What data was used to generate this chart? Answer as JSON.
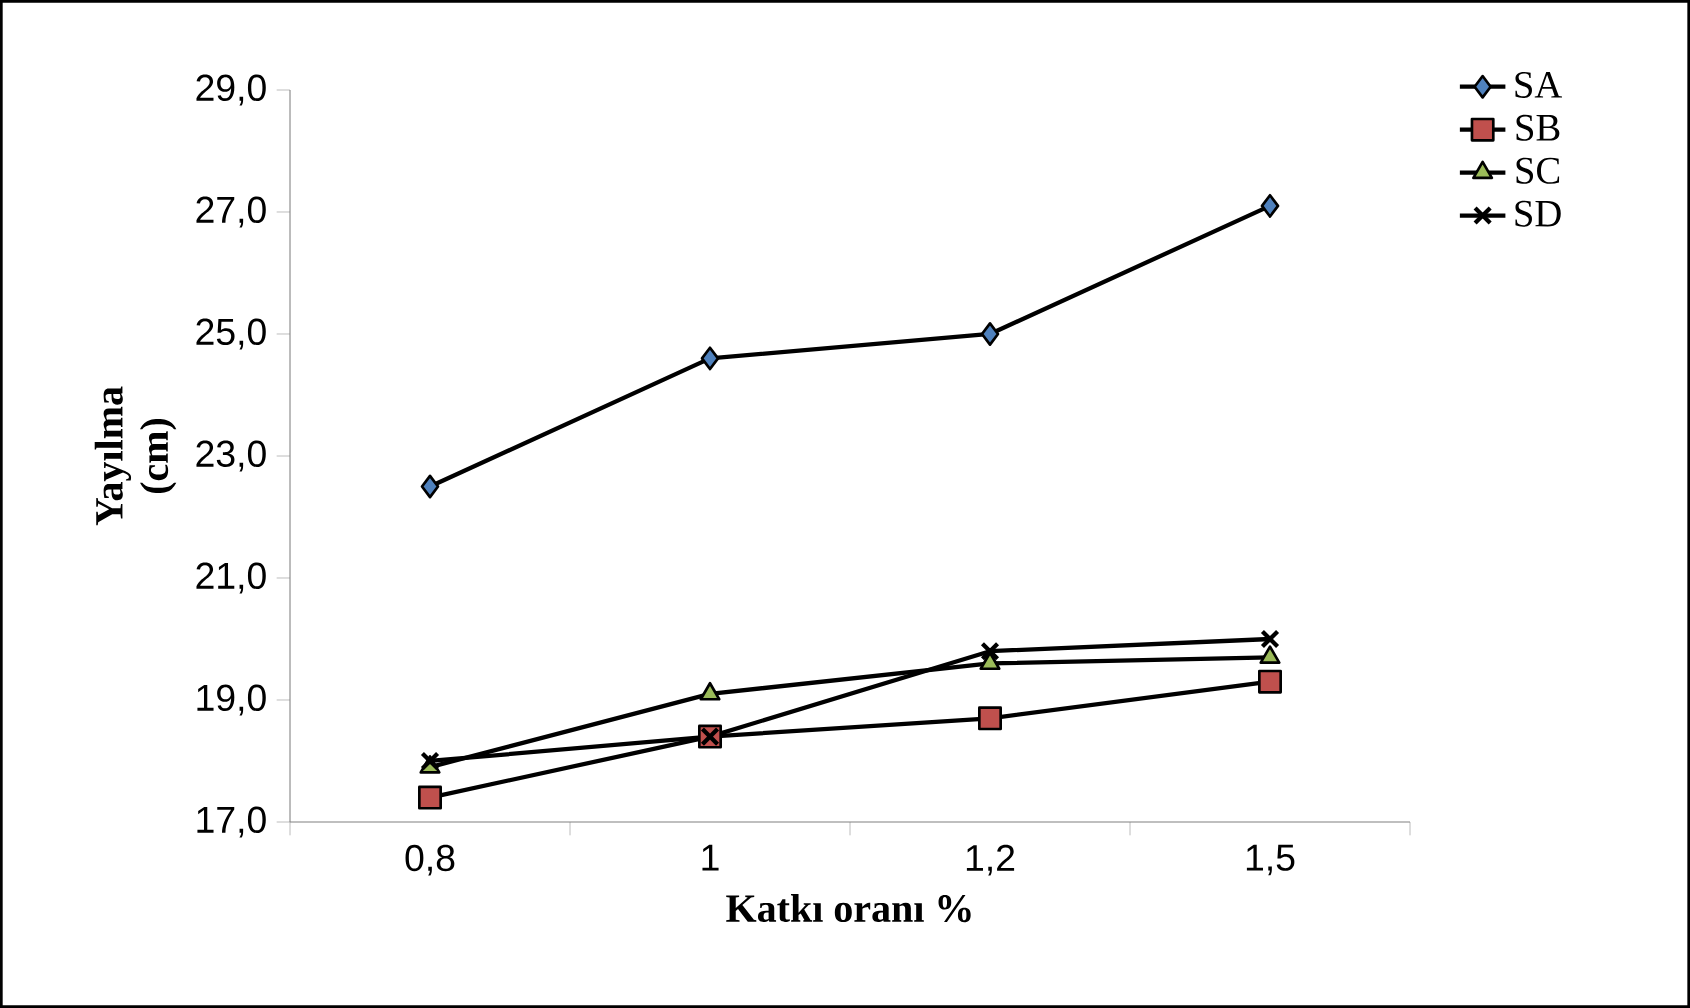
{
  "chart_data": {
    "type": "line",
    "xlabel": "Katkı oranı %",
    "ylabel": "Yayılma (cm)",
    "categories": [
      "0,8",
      "1",
      "1,2",
      "1,5"
    ],
    "series": [
      {
        "name": "SA",
        "color": "#4f81bd",
        "marker": "diamond",
        "values": [
          22.5,
          24.6,
          25.0,
          27.1
        ]
      },
      {
        "name": "SB",
        "color": "#c0504d",
        "marker": "square",
        "values": [
          17.4,
          18.4,
          18.7,
          19.3
        ]
      },
      {
        "name": "SC",
        "color": "#9bbb59",
        "marker": "triangle",
        "values": [
          17.9,
          19.1,
          19.6,
          19.7
        ]
      },
      {
        "name": "SD",
        "color": "#000000",
        "marker": "cross",
        "values": [
          18.0,
          18.4,
          19.8,
          20.0
        ]
      }
    ],
    "ylim": [
      17,
      29
    ],
    "yticks": [
      {
        "value": 17,
        "label": "17,0"
      },
      {
        "value": 19,
        "label": "19,0"
      },
      {
        "value": 21,
        "label": "21,0"
      },
      {
        "value": 23,
        "label": "23,0"
      },
      {
        "value": 25,
        "label": "25,0"
      },
      {
        "value": 27,
        "label": "27,0"
      },
      {
        "value": 29,
        "label": "29,0"
      }
    ],
    "grid": false,
    "legend": "top right"
  }
}
